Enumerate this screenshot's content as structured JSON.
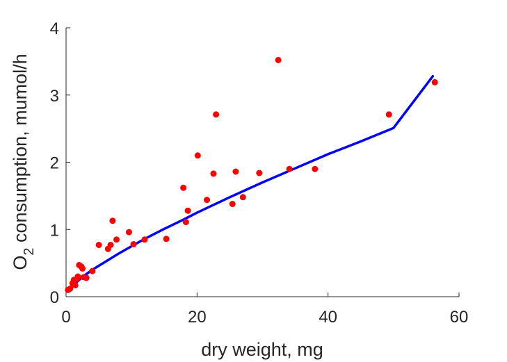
{
  "chart_data": {
    "type": "scatter",
    "title": "",
    "xlabel": "dry weight, mg",
    "ylabel": "O",
    "ylabel_subscript": "2",
    "ylabel_rest": " consumption, mumol/h",
    "xlim": [
      0,
      60
    ],
    "ylim": [
      0,
      4
    ],
    "xticks": [
      0,
      20,
      40,
      60
    ],
    "yticks": [
      0,
      1,
      2,
      3,
      4
    ],
    "grid": false,
    "legend": "none",
    "series": [
      {
        "kind": "scatter",
        "color": "#ff0000",
        "points": [
          [
            0.3,
            0.1
          ],
          [
            0.6,
            0.12
          ],
          [
            1.0,
            0.2
          ],
          [
            1.2,
            0.25
          ],
          [
            1.4,
            0.17
          ],
          [
            1.6,
            0.26
          ],
          [
            1.8,
            0.3
          ],
          [
            2.0,
            0.47
          ],
          [
            2.3,
            0.45
          ],
          [
            2.5,
            0.42
          ],
          [
            2.7,
            0.29
          ],
          [
            3.1,
            0.28
          ],
          [
            4.0,
            0.38
          ],
          [
            5.0,
            0.77
          ],
          [
            6.4,
            0.71
          ],
          [
            6.8,
            0.77
          ],
          [
            7.1,
            1.13
          ],
          [
            7.7,
            0.85
          ],
          [
            9.6,
            0.96
          ],
          [
            10.3,
            0.78
          ],
          [
            12.0,
            0.85
          ],
          [
            15.3,
            0.86
          ],
          [
            17.9,
            1.62
          ],
          [
            18.3,
            1.11
          ],
          [
            18.6,
            1.28
          ],
          [
            20.1,
            2.1
          ],
          [
            21.5,
            1.44
          ],
          [
            22.5,
            1.83
          ],
          [
            22.9,
            2.71
          ],
          [
            25.4,
            1.38
          ],
          [
            25.9,
            1.86
          ],
          [
            27.0,
            1.48
          ],
          [
            29.5,
            1.84
          ],
          [
            32.4,
            3.52
          ],
          [
            34.1,
            1.9
          ],
          [
            38.0,
            1.9
          ],
          [
            49.3,
            2.71
          ],
          [
            56.3,
            3.19
          ]
        ]
      },
      {
        "kind": "line",
        "color": "#0000ff",
        "x": [
          0.5,
          1,
          2,
          3,
          4,
          5,
          6,
          8,
          10,
          12,
          15,
          18,
          20,
          25,
          30,
          35,
          40,
          45,
          50,
          56
        ],
        "y": [
          0.1,
          0.16,
          0.25,
          0.33,
          0.4,
          0.46,
          0.52,
          0.64,
          0.75,
          0.86,
          1.01,
          1.15,
          1.25,
          1.48,
          1.7,
          1.91,
          2.12,
          2.31,
          2.51,
          3.28
        ]
      }
    ]
  }
}
